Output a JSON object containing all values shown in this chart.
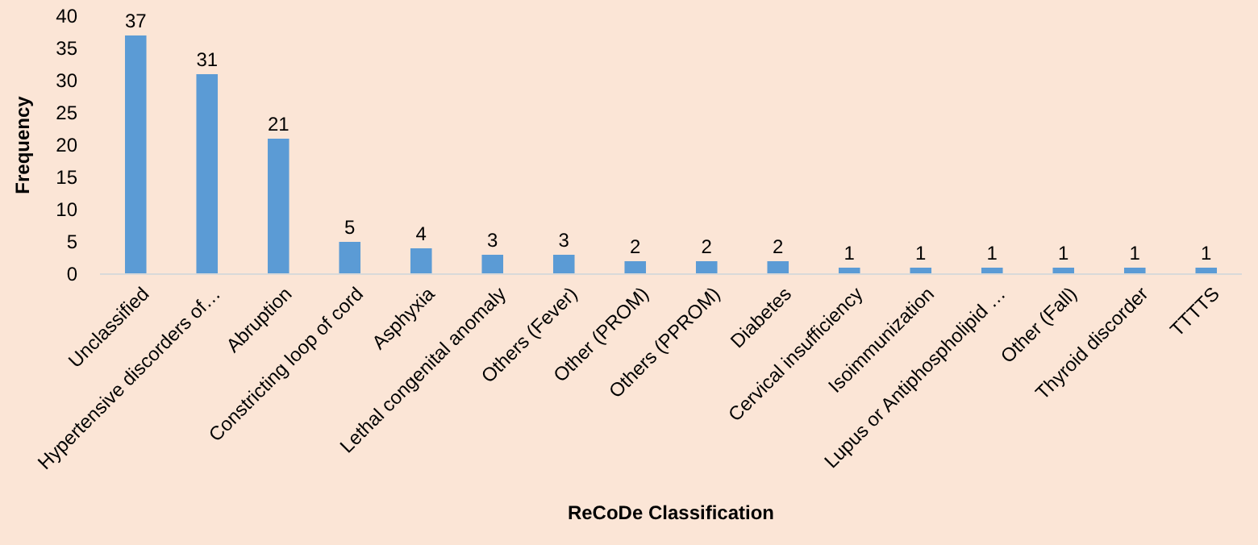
{
  "chart_data": {
    "type": "bar",
    "xlabel": "ReCoDe Classification",
    "ylabel": "Frequency",
    "categories": [
      "Unclassified",
      "Hypertensive discorders of…",
      "Abruption",
      "Constricting loop of cord",
      "Asphyxia",
      "Lethal congenital anomaly",
      "Others (Fever)",
      "Other (PROM)",
      "Others (PPROM)",
      "Diabetes",
      "Cervical insufficiency",
      "Isoimmunization",
      "Lupus or Antiphospholipid …",
      "Other (Fall)",
      "Thyroid discorder",
      "TTTTS"
    ],
    "values": [
      37,
      31,
      21,
      5,
      4,
      3,
      3,
      2,
      2,
      2,
      1,
      1,
      1,
      1,
      1,
      1
    ],
    "color": "#5b9bd5",
    "ylim": [
      0,
      40
    ],
    "yticks": [
      0,
      5,
      10,
      15,
      20,
      25,
      30,
      35,
      40
    ],
    "grid": false,
    "data_labels": true
  }
}
